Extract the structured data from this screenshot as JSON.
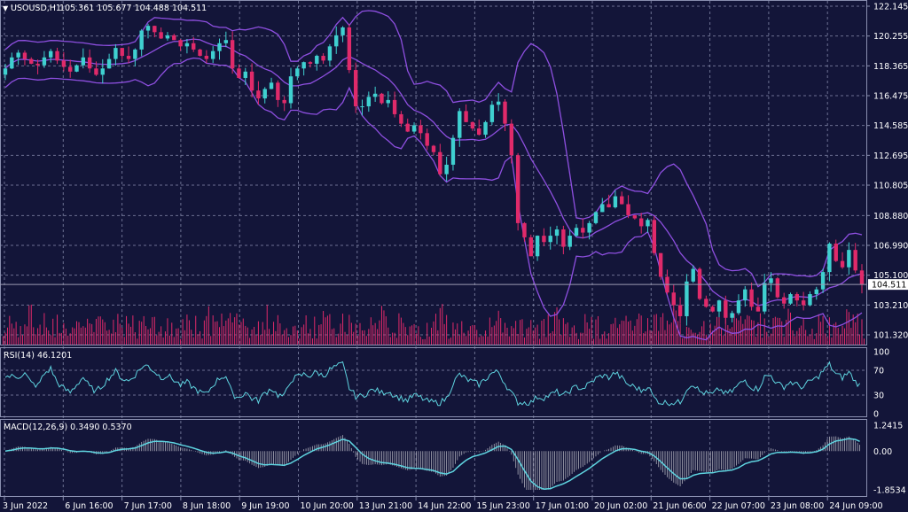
{
  "header": {
    "symbol_label": "USOUSD,H1",
    "ohlc": "105.361 105.677 104.488 104.511"
  },
  "colors": {
    "background": "#131539",
    "grid": "#8a8fb0",
    "axis_text": "#ffffff",
    "candle_up": "#3fd0d0",
    "candle_down": "#e02a6a",
    "bollinger": "#8e4fe0",
    "volume": "#e02a6a",
    "rsi_line": "#5fd4e0",
    "macd_line": "#5fd4e0",
    "macd_hist": "#c8c8d0"
  },
  "price_axis": {
    "ticks": [
      "122.145",
      "120.255",
      "118.365",
      "116.475",
      "114.585",
      "112.695",
      "110.805",
      "108.880",
      "106.990",
      "105.100",
      "103.210",
      "101.320"
    ],
    "current_price": "104.511"
  },
  "time_axis": {
    "labels": [
      "3 Jun 2022",
      "6 Jun 16:00",
      "7 Jun 17:00",
      "8 Jun 18:00",
      "9 Jun 19:00",
      "10 Jun 20:00",
      "13 Jun 21:00",
      "14 Jun 22:00",
      "15 Jun 23:00",
      "17 Jun 01:00",
      "20 Jun 02:00",
      "21 Jun 06:00",
      "22 Jun 07:00",
      "23 Jun 08:00",
      "24 Jun 09:00"
    ]
  },
  "rsi": {
    "label": "RSI(14) 46.1201",
    "ticks": [
      "100",
      "70",
      "30",
      "0"
    ]
  },
  "macd": {
    "label": "MACD(12,26,9) 0.3490 0.5370",
    "ticks": [
      "1.2415",
      "0.00",
      "-1.8534"
    ]
  },
  "chart_data": {
    "type": "candlestick",
    "title": "USOUSD,H1",
    "price_range": [
      101.32,
      122.145
    ],
    "rsi_range": [
      0,
      100
    ],
    "macd_range": [
      -1.8534,
      1.2415
    ],
    "closes": [
      118.2,
      118.9,
      119.2,
      118.8,
      118.5,
      118.4,
      118.9,
      119.3,
      118.7,
      118.3,
      118.0,
      118.4,
      118.9,
      118.2,
      117.8,
      118.2,
      118.8,
      119.5,
      119.0,
      118.8,
      119.4,
      120.6,
      120.9,
      120.5,
      120.1,
      120.3,
      120.0,
      119.6,
      119.8,
      119.4,
      119.0,
      118.8,
      119.3,
      119.8,
      120.0,
      118.2,
      117.6,
      118.0,
      116.8,
      116.3,
      116.9,
      117.3,
      116.2,
      116.0,
      117.7,
      118.2,
      118.6,
      118.5,
      119.0,
      118.7,
      119.6,
      120.3,
      120.8,
      118.1,
      115.8,
      115.8,
      116.4,
      116.6,
      116.0,
      116.2,
      115.3,
      114.7,
      114.2,
      114.6,
      114.1,
      113.3,
      112.9,
      111.5,
      112.1,
      113.8,
      115.5,
      114.8,
      114.4,
      114.0,
      114.8,
      115.9,
      116.1,
      114.7,
      112.7,
      108.4,
      107.5,
      106.3,
      107.6,
      107.2,
      107.6,
      108.0,
      106.9,
      107.6,
      108.1,
      107.8,
      108.4,
      109.1,
      109.6,
      109.4,
      110.1,
      109.6,
      108.9,
      108.7,
      108.2,
      108.6,
      106.5,
      105.0,
      104.0,
      103.2,
      102.5,
      104.7,
      105.5,
      103.6,
      103.1,
      102.8,
      103.5,
      102.4,
      102.7,
      103.5,
      104.2,
      103.1,
      102.8,
      104.6,
      104.9,
      103.7,
      103.3,
      103.9,
      103.5,
      103.2,
      103.9,
      104.2,
      105.3,
      107.1,
      106.0,
      105.6,
      106.7,
      105.4,
      104.51
    ]
  }
}
